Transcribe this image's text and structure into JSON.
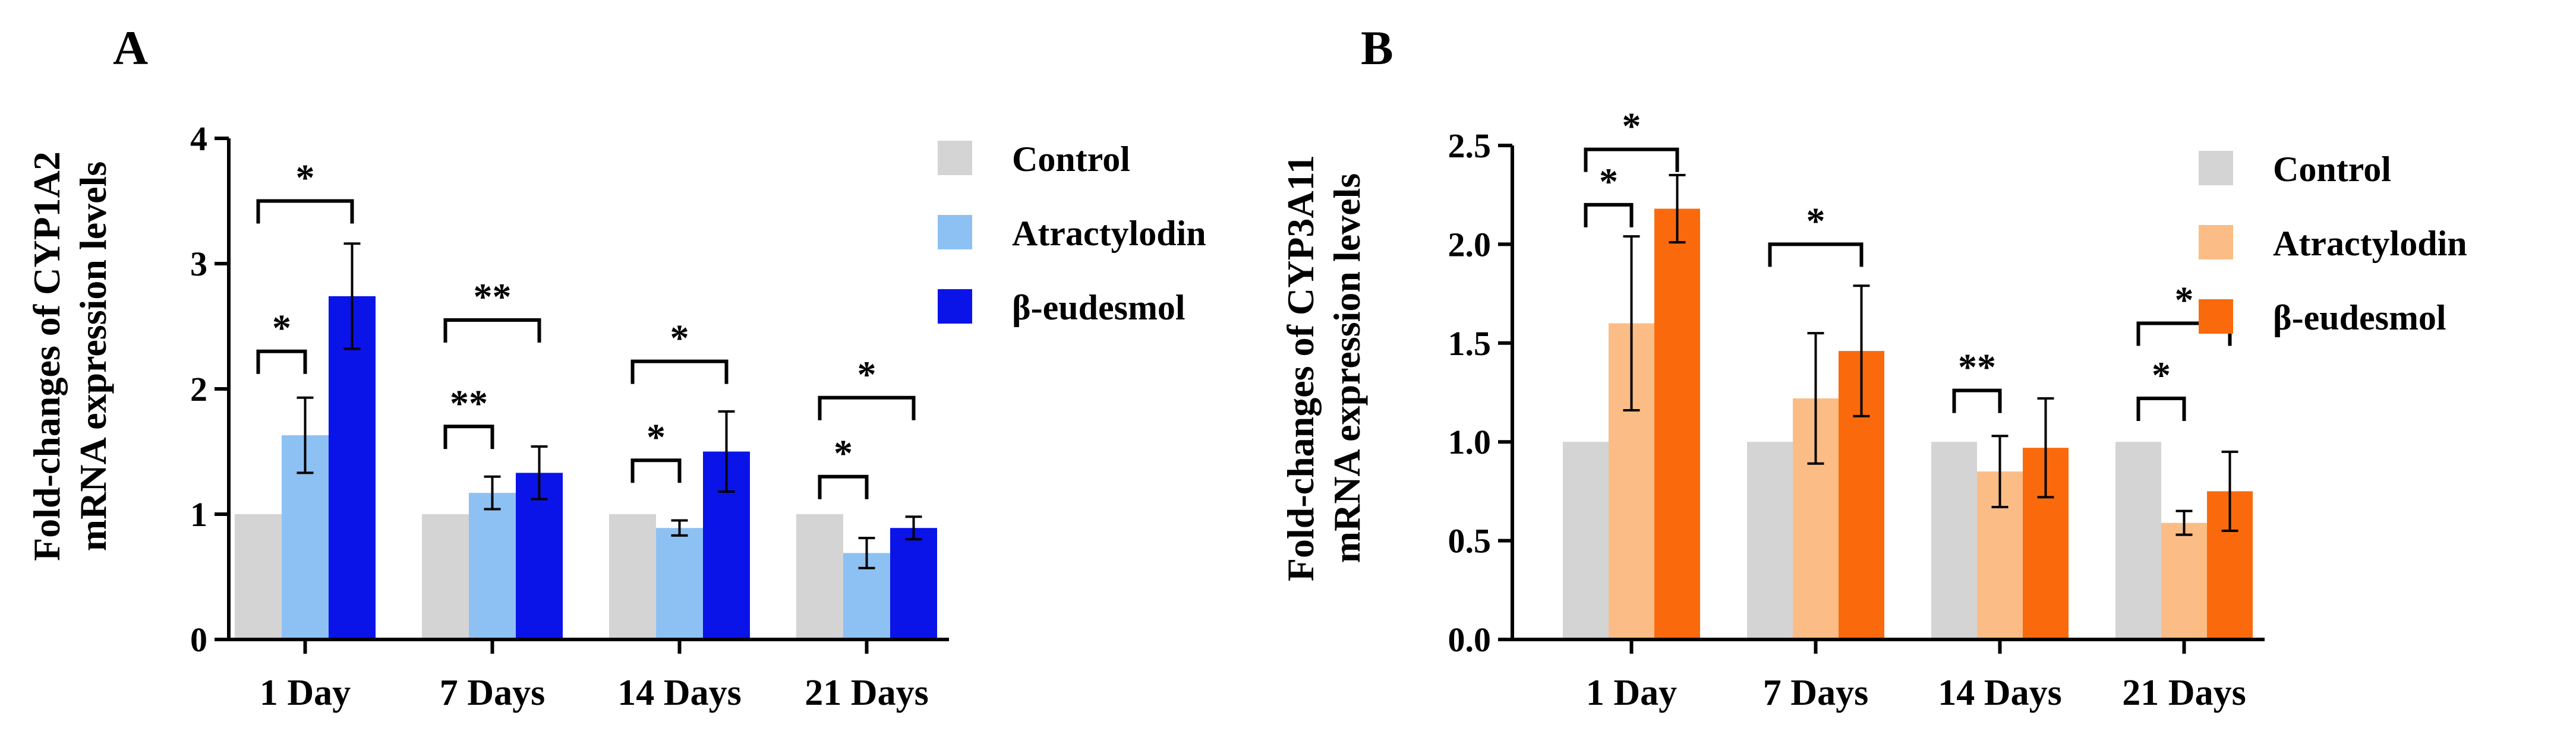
{
  "chart_data": [
    {
      "type": "bar",
      "panel_label": "A",
      "ylabel_lines": [
        "Fold-changes of CYP1A2",
        "mRNA expression levels"
      ],
      "xlabel": "",
      "ylim": [
        0,
        4
      ],
      "yticks": [
        "0",
        "1",
        "2",
        "3",
        "4"
      ],
      "categories": [
        "1 Day",
        "7 Days",
        "14 Days",
        "21 Days"
      ],
      "series": [
        {
          "name": "Control",
          "color": "#d4d4d4",
          "values": [
            1.0,
            1.0,
            1.0,
            1.0
          ],
          "errors": [
            0,
            0,
            0,
            0
          ]
        },
        {
          "name": "Atractylodin",
          "color": "#8ec1f3",
          "values": [
            1.63,
            1.17,
            0.89,
            0.69
          ],
          "errors": [
            0.3,
            0.13,
            0.06,
            0.12
          ]
        },
        {
          "name": "β-eudesmol",
          "color": "#0a14e8",
          "values": [
            2.74,
            1.33,
            1.5,
            0.89
          ],
          "errors": [
            0.42,
            0.21,
            0.32,
            0.09
          ]
        }
      ],
      "significance": [
        {
          "category": 0,
          "from": 0,
          "to": 1,
          "label": "*",
          "level": 2.3
        },
        {
          "category": 0,
          "from": 0,
          "to": 2,
          "label": "*",
          "level": 3.5
        },
        {
          "category": 1,
          "from": 0,
          "to": 1,
          "label": "**",
          "level": 1.7
        },
        {
          "category": 1,
          "from": 0,
          "to": 2,
          "label": "**",
          "level": 2.55
        },
        {
          "category": 2,
          "from": 0,
          "to": 1,
          "label": "*",
          "level": 1.43
        },
        {
          "category": 2,
          "from": 0,
          "to": 2,
          "label": "*",
          "level": 2.22
        },
        {
          "category": 3,
          "from": 0,
          "to": 1,
          "label": "*",
          "level": 1.3
        },
        {
          "category": 3,
          "from": 0,
          "to": 2,
          "label": "*",
          "level": 1.93
        }
      ]
    },
    {
      "type": "bar",
      "panel_label": "B",
      "ylabel_lines": [
        "Fold-changes of CYP3A11",
        "mRNA expression levels"
      ],
      "xlabel": "",
      "ylim": [
        0,
        2.5
      ],
      "yticks": [
        "0.0",
        "0.5",
        "1.0",
        "1.5",
        "2.0",
        "2.5"
      ],
      "categories": [
        "1 Day",
        "7 Days",
        "14 Days",
        "21 Days"
      ],
      "series": [
        {
          "name": "Control",
          "color": "#d4d4d4",
          "values": [
            1.0,
            1.0,
            1.0,
            1.0
          ],
          "errors": [
            0,
            0,
            0,
            0
          ]
        },
        {
          "name": "Atractylodin",
          "color": "#fbbd85",
          "values": [
            1.6,
            1.22,
            0.85,
            0.59
          ],
          "errors": [
            0.44,
            0.33,
            0.18,
            0.06
          ]
        },
        {
          "name": "β-eudesmol",
          "color": "#fa6a0c",
          "values": [
            2.18,
            1.46,
            0.97,
            0.75
          ],
          "errors": [
            0.17,
            0.33,
            0.25,
            0.2
          ]
        }
      ],
      "significance": [
        {
          "category": 0,
          "from": 0,
          "to": 1,
          "label": "*",
          "level": 2.2
        },
        {
          "category": 0,
          "from": 0,
          "to": 2,
          "label": "*",
          "level": 2.48
        },
        {
          "category": 1,
          "from": 0,
          "to": 2,
          "label": "*",
          "level": 2.0
        },
        {
          "category": 2,
          "from": 0,
          "to": 1,
          "label": "**",
          "level": 1.26
        },
        {
          "category": 3,
          "from": 0,
          "to": 1,
          "label": "*",
          "level": 1.22
        },
        {
          "category": 3,
          "from": 0,
          "to": 2,
          "label": "*",
          "level": 1.6
        }
      ]
    }
  ]
}
